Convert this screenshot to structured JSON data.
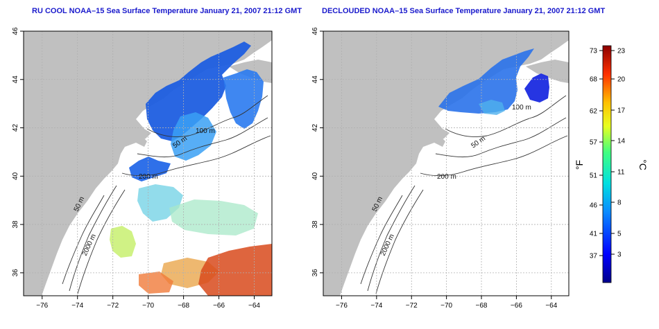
{
  "maps": [
    {
      "title": "RU COOL NOAA–15 Sea Surface Temperature January 21, 2007 21:12 GMT",
      "x_ticks": [
        "−76",
        "−74",
        "−72",
        "−70",
        "−68",
        "−66",
        "−64"
      ],
      "y_ticks": [
        "36",
        "38",
        "40",
        "42",
        "44",
        "46"
      ],
      "contour_labels": [
        "50 m",
        "100 m",
        "200 m",
        "50 m",
        "2000 m"
      ],
      "cloud_mask": "none"
    },
    {
      "title": "DECLOUDED NOAA–15 Sea Surface Temperature January 21, 2007 21:12 GMT",
      "x_ticks": [
        "−76",
        "−74",
        "−72",
        "−70",
        "−68",
        "−66",
        "−64"
      ],
      "y_ticks": [
        "36",
        "38",
        "40",
        "42",
        "44",
        "46"
      ],
      "contour_labels": [
        "50 m",
        "100 m",
        "200 m",
        "50 m",
        "2000 m"
      ],
      "cloud_mask": "applied"
    }
  ],
  "colorbar": {
    "f_label": "°F",
    "c_label": "°C",
    "f_ticks": [
      "73",
      "68",
      "62",
      "57",
      "51",
      "46",
      "41",
      "37"
    ],
    "c_ticks": [
      "23",
      "20",
      "17",
      "14",
      "11",
      "8",
      "5",
      "3"
    ]
  },
  "colors": {
    "land": "#c0c0c0",
    "ocean": "#ffffff",
    "title": "#1a1acc",
    "grid": "#b0b0b0",
    "contour": "#333333"
  }
}
